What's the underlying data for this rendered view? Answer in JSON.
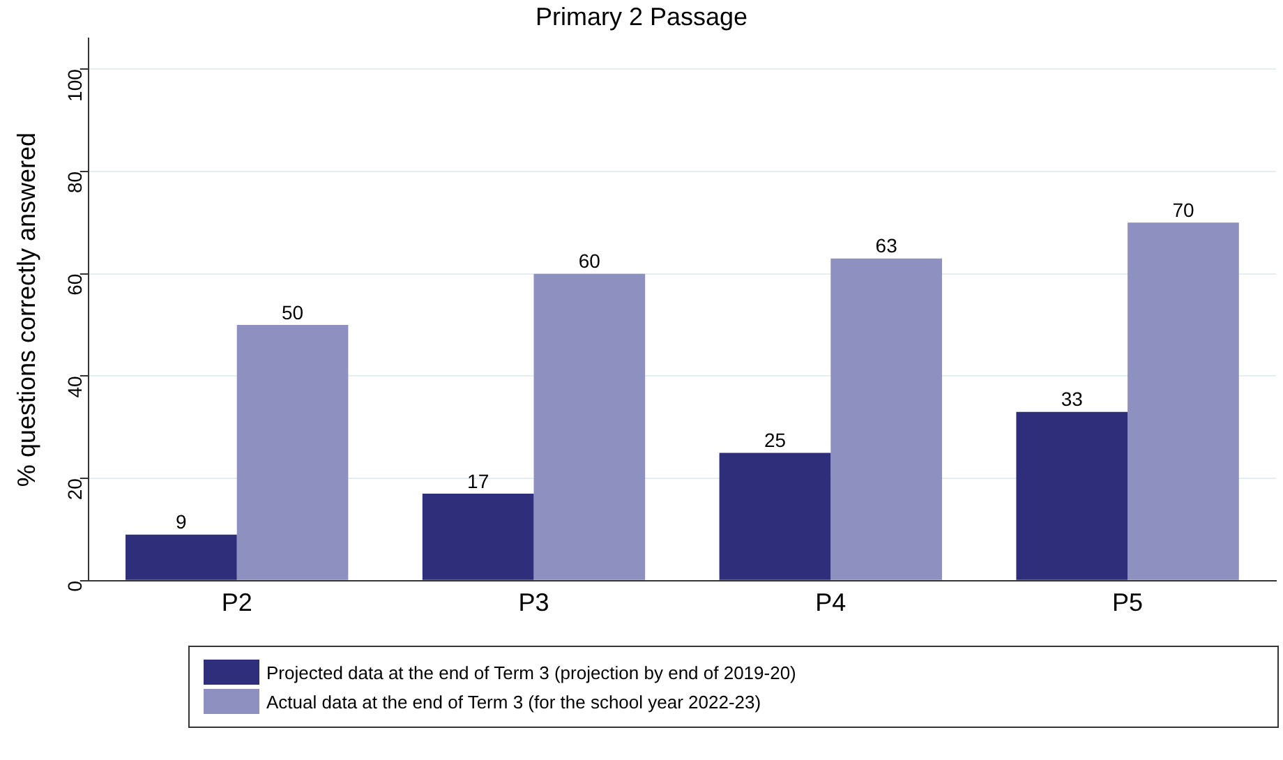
{
  "chart_data": {
    "type": "bar",
    "title": "Primary 2 Passage",
    "ylabel": "% questions correctly answered",
    "categories": [
      "P2",
      "P3",
      "P4",
      "P5"
    ],
    "series": [
      {
        "name": "Projected data at the end of Term 3 (projection by end of 2019-20)",
        "color": "#2e2e7a",
        "values": [
          9,
          17,
          25,
          33
        ]
      },
      {
        "name": "Actual data at the end of Term 3 (for the school year 2022-23)",
        "color": "#8e90bf",
        "values": [
          50,
          60,
          63,
          70
        ]
      }
    ],
    "ylim": [
      0,
      106
    ],
    "yticks": [
      0,
      20,
      40,
      60,
      80,
      100
    ],
    "grid": "y",
    "legend": "bottom",
    "data_labels": true
  }
}
